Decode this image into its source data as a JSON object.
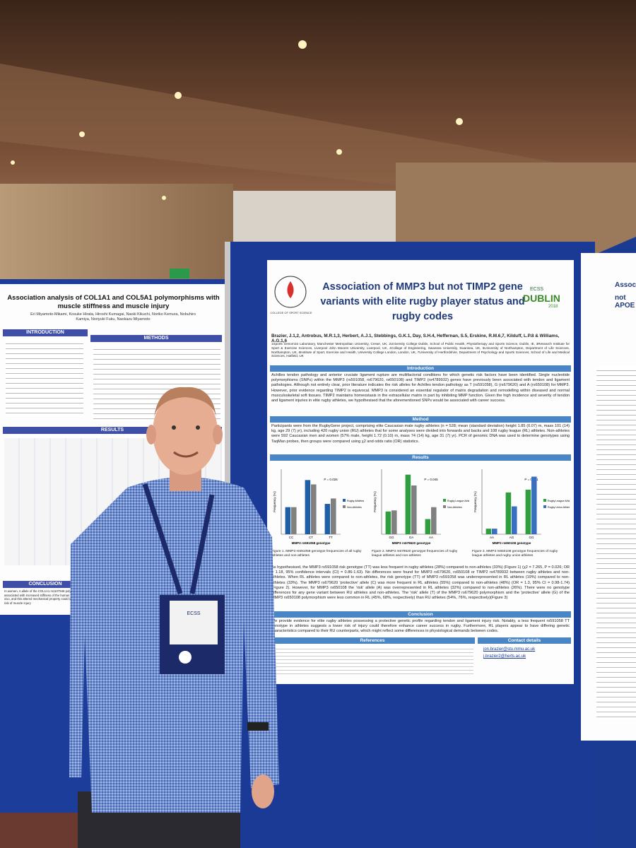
{
  "main_poster": {
    "title": "Association of MMP3 but not TIMP2 gene variants with elite rugby player status and rugby codes",
    "logo_left": "COLLEGE OF SPORT SCIENCE",
    "logo_right_top": "ECSS",
    "logo_right": "DUBLIN",
    "logo_year": "2018",
    "authors": "Brazier, J.1,2, Antrobus, M.R.1,3, Herbert, A.J.1, Stebbings, G.K.1, Day, S.H.4, Heffernan, S.5, Erskine, R.M.6,7, Kilduff, L.P.8 & Williams, A.G.1,6",
    "affiliations": "1Sports Genomics Laboratory, Manchester Metropolitan University, Crewe, UK, 2University College Dublin, School of Public Health, Physiotherapy and Sports Science, Dublin, IE, 3Research Institute for Sport & Exercise Sciences, Liverpool John Moores University, Liverpool, UK, 4College of Engineering, Swansea University, Swansea, UK, 5University of Northampton, Department of Life Sciences, Northampton, UK, 6Institute of Sport, Exercise and Health, University College London, London, UK, 7University of Hertfordshire, Department of Psychology and Sports Sciences, School of Life and Medical Sciences, Hatfield, UK",
    "sections": [
      {
        "heading": "Introduction",
        "text": "Achilles tendon pathology and anterior cruciate ligament rupture are multifactorial conditions for which genetic risk factors have been identified. Single nucleotide polymorphisms (SNPs) within the MMP3 (rs591058, rs679620, rs650108) and TIMP2 (rs4789932) genes have previously been associated with tendon and ligament pathologies. Although not entirely clear, prior literature indicates the risk alleles for Achilles tendon pathology as T (rs591058), G (rs679620) and A (rs650108) for MMP3. However, prior evidence regarding TIMP2 is equivocal. MMP3 is considered an essential regulator of matrix degradation and remodelling within diseased and normal musculoskeletal soft tissues. TIMP2 maintains homeostasis in the extracellular matrix in part by inhibiting MMP function. Given the high incidence and severity of tendon and ligament injuries in elite rugby athletes, we hypothesised that the aforementioned SNPs would be associated with career success."
      },
      {
        "heading": "Method",
        "text": "Participants were from the RugbyGene project, comprising elite Caucasian male rugby athletes (n = 528; mean (standard deviation) height 1.85 (0.07) m, mass 101 (14) kg, age 29 (7) yr), including 420 rugby union (RU) athletes that for some analyses were divided into forwards and backs and 108 rugby league (RL) athletes. Non-athletes were 592 Caucasian men and women (57% male, height 1.72 (0.10) m, mass 74 (14) kg, age 31 (7) yr). PCR of genomic DNA was used to determine genotypes using TaqMan probes, then groups were compared using χ2 and odds ratio (OR) statistics."
      },
      {
        "heading": "Results",
        "text": ""
      }
    ],
    "results_text": "As hypothesised, the MMP3 rs591058 risk genotype (TT) was less frequent in rugby athletes (28%) compared to non-athletes (33%) (Figure 1) (χ2 = 7.265, P = 0.026; OR = 1.18, 95% confidence intervals (CI) = 0.86-1.63). No differences were found for MMP3 rs679620, rs650108 or TIMP2 rs4789932 between rugby athletes and non-athletes. When RL athletes were compared to non-athletes, the risk genotype (TT) of MMP3 rs591058 was underrepresented in RL athletes (19%) compared to non-athletes (33%). The MMP3 rs679620 'protective' allele (C) was more frequent in RL athletes (55%) compared to non-athletes (48%) (OR = 1.3, 95% CI = 0.98-1.74) (Figure 2). However, for MMP3 rs650108 the 'risk' allele (A) was overrepresented in RL athletes (32%) compared to non-athletes (26%). There were no genotype differences for any gene variant between RU athletes and non-athletes. The 'risk' allele (T) of the MMP3 rs679620 polymorphism and the 'protective' allele (G) of the MMP3 rs650108 polymorphism were less common in RL (45%, 68%, respectively) than RU athletes (54%, 76%, respectively)(Figure 3)",
    "conclusion_heading": "Conclusion",
    "conclusion_text": "We provide evidence for elite rugby athletes possessing a protective genetic profile regarding tendon and ligament injury risk. Notably, a less frequent rs591058 TT genotype in athletes suggests a lower risk of injury could therefore enhance career success in rugby. Furthermore, RL players appear to have differing genetic characteristics compared to their RU counterparts, which might reflect some differences in physiological demands between codes.",
    "references_heading": "References",
    "contact_heading": "Contact details",
    "contact": [
      "jon.brazier@stu.mmu.ac.uk",
      "j.brazier2@herts.ac.uk"
    ],
    "figures": [
      {
        "caption": "Figure 1. MMP3 rs591058 genotype frequencies of all rugby athletes and non-athletes",
        "y_label": "Frequency (%)",
        "x_label": "MMP3 rs591058 genotype",
        "annotation": "P = 0.026",
        "categories": [
          "CC",
          "CT",
          "TT"
        ],
        "ylim": [
          0,
          60
        ],
        "series": [
          {
            "name": "Rugby Athletes",
            "color": "#1f5fa8",
            "values": [
              25,
              50,
              28
            ]
          },
          {
            "name": "Non-Athletes",
            "color": "#808080",
            "values": [
              25,
              46,
              33
            ]
          }
        ]
      },
      {
        "caption": "Figure 2. MMP3 rs679620 genotype frequencies of rugby league athletes and non-athletes",
        "y_label": "Frequency (%)",
        "x_label": "MMP3 rs679620 genotype",
        "annotation": "P = 0.045",
        "categories": [
          "GG",
          "GA",
          "AA"
        ],
        "ylim": [
          0,
          60
        ],
        "series": [
          {
            "name": "Rugby League Athletes",
            "color": "#2e9e3e",
            "values": [
              21,
              55,
              14
            ]
          },
          {
            "name": "Non-Athletes",
            "color": "#808080",
            "values": [
              22,
              45,
              25
            ]
          }
        ]
      },
      {
        "caption": "Figure 3. MMP3 rs650108 genotype frequencies of rugby league athletes and rugby union athletes",
        "y_label": "Frequency (%)",
        "x_label": "MMP3 rs650108 genotype",
        "annotation": "P = 0.031",
        "categories": [
          "AA",
          "AG",
          "GG"
        ],
        "ylim": [
          0,
          70
        ],
        "series": [
          {
            "name": "Rugby League Athletes",
            "color": "#2e9e3e",
            "values": [
              6,
              45,
              48
            ]
          },
          {
            "name": "Rugby Union Athletes",
            "color": "#3a6fc0",
            "values": [
              6,
              30,
              62
            ]
          }
        ]
      }
    ]
  },
  "left_poster": {
    "title": "Association analysis of COL1A1 and COL5A1 polymorphisms with muscle stiffness and muscle injury",
    "authors": "Eri Miyamoto-Mikami, Kosuke Hirata, Hiroshi Kumagai, Naoki Kikuchi, Noriko Kemura, Nobuhiro Kamiya, Noriyuki Fuku, Naokazu Miyamoto",
    "headings": [
      "INTRODUCTION",
      "METHODS",
      "RESULTS",
      "CONCLUSION"
    ],
    "conclusion": "In women, A allele of the COL1A1 rs1107946 polymorphism is associated with increased stiffness of the human hamstring in vivo, and this altered mechanical property could influence the risk of muscle injury"
  },
  "right_poster": {
    "title": "Associa",
    "subtitle": "not APOE"
  },
  "badge": "ECSS"
}
